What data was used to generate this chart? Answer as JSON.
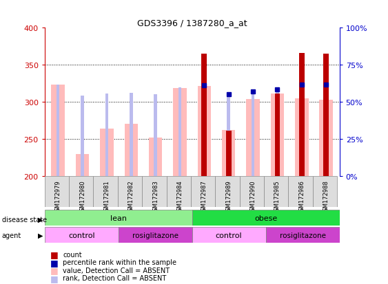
{
  "title": "GDS3396 / 1387280_a_at",
  "samples": [
    "GSM172979",
    "GSM172980",
    "GSM172981",
    "GSM172982",
    "GSM172983",
    "GSM172984",
    "GSM172987",
    "GSM172989",
    "GSM172990",
    "GSM172985",
    "GSM172986",
    "GSM172988"
  ],
  "ymin": 200,
  "ymax": 400,
  "yticks_left": [
    200,
    250,
    300,
    350,
    400
  ],
  "yticks_right": [
    0,
    25,
    50,
    75,
    100
  ],
  "left_color": "#cc0000",
  "right_color": "#0000cc",
  "value_absent": [
    323,
    229,
    264,
    270,
    252,
    319,
    321,
    262,
    304,
    311,
    305,
    303
  ],
  "rank_absent": [
    323,
    308,
    311,
    312,
    310,
    320,
    322,
    313,
    315,
    315,
    325,
    323
  ],
  "count": [
    207,
    207,
    207,
    207,
    207,
    207,
    365,
    261,
    207,
    311,
    366,
    365
  ],
  "percentile_rank": [
    null,
    null,
    null,
    null,
    null,
    null,
    322,
    310,
    314,
    317,
    323,
    323
  ],
  "has_count": [
    false,
    false,
    false,
    false,
    false,
    false,
    true,
    true,
    false,
    true,
    true,
    true
  ],
  "has_percentile": [
    false,
    false,
    false,
    false,
    false,
    false,
    true,
    true,
    true,
    true,
    true,
    true
  ],
  "lean_color": "#90ee90",
  "obese_color": "#22dd44",
  "control_color": "#ffaaff",
  "rosiglitazone_color": "#cc44cc",
  "value_bar_color": "#ffbbbb",
  "rank_bar_color": "#bbbbee",
  "count_bar_color": "#bb0000",
  "percentile_bar_color": "#0000aa",
  "legend_items": [
    "count",
    "percentile rank within the sample",
    "value, Detection Call = ABSENT",
    "rank, Detection Call = ABSENT"
  ],
  "legend_colors": [
    "#bb0000",
    "#0000aa",
    "#ffbbbb",
    "#bbbbee"
  ]
}
